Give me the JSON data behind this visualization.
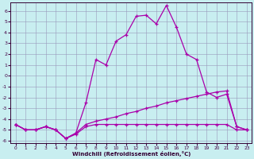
{
  "xlabel": "Windchill (Refroidissement éolien,°C)",
  "background_color": "#c8eef0",
  "grid_color": "#9999bb",
  "line_color": "#aa00aa",
  "xlim": [
    -0.5,
    23.5
  ],
  "ylim": [
    -6.2,
    6.8
  ],
  "xticks": [
    0,
    1,
    2,
    3,
    4,
    5,
    6,
    7,
    8,
    9,
    10,
    11,
    12,
    13,
    14,
    15,
    16,
    17,
    18,
    19,
    20,
    21,
    22,
    23
  ],
  "yticks": [
    -6,
    -5,
    -4,
    -3,
    -2,
    -1,
    0,
    1,
    2,
    3,
    4,
    5,
    6
  ],
  "x": [
    0,
    1,
    2,
    3,
    4,
    5,
    6,
    7,
    8,
    9,
    10,
    11,
    12,
    13,
    14,
    15,
    16,
    17,
    18,
    19,
    20,
    21,
    22,
    23
  ],
  "line_wavy": [
    -4.5,
    -5.0,
    -5.0,
    -4.7,
    -5.0,
    -5.8,
    -5.3,
    -2.5,
    1.5,
    1.0,
    3.2,
    3.8,
    5.5,
    5.6,
    4.8,
    6.5,
    4.5,
    2.0,
    1.5,
    -1.5,
    -2.0,
    -1.7,
    -4.7,
    -5.0
  ],
  "line_flat": [
    -4.5,
    -5.0,
    -5.0,
    -4.7,
    -5.0,
    -5.8,
    -5.4,
    -4.7,
    -4.5,
    -4.5,
    -4.5,
    -4.5,
    -4.5,
    -4.5,
    -4.5,
    -4.5,
    -4.5,
    -4.5,
    -4.5,
    -4.5,
    -4.5,
    -4.5,
    -5.0,
    -5.0
  ],
  "line_diag": [
    -4.5,
    -5.0,
    -5.0,
    -4.7,
    -5.0,
    -5.8,
    -5.3,
    -4.5,
    -4.2,
    -4.0,
    -3.8,
    -3.5,
    -3.3,
    -3.0,
    -2.8,
    -2.5,
    -2.3,
    -2.1,
    -1.9,
    -1.7,
    -1.5,
    -1.4,
    -4.7,
    -5.0
  ]
}
